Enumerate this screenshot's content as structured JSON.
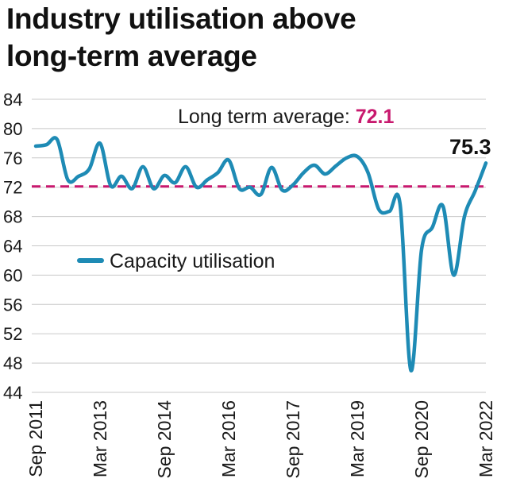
{
  "title_line1": "Industry utilisation above",
  "title_line2": "long-term average",
  "chart_data": {
    "type": "line",
    "title": "Industry utilisation above long-term average",
    "xlabel": "",
    "ylabel": "",
    "ylim": [
      44,
      84
    ],
    "yticks": [
      44,
      48,
      52,
      56,
      60,
      64,
      68,
      72,
      76,
      80,
      84
    ],
    "x_tick_labels": [
      "Sep 2011",
      "Mar 2013",
      "Sep 2014",
      "Mar 2016",
      "Sep 2017",
      "Mar 2019",
      "Sep 2020",
      "Mar 2022"
    ],
    "grid": "horizontal",
    "legend": "middle-left",
    "series": [
      {
        "name": "Capacity utilisation",
        "color": "#1e8bb5",
        "x": [
          "Sep 2011",
          "Dec 2011",
          "Mar 2012",
          "Jun 2012",
          "Sep 2012",
          "Dec 2012",
          "Mar 2013",
          "Jun 2013",
          "Sep 2013",
          "Dec 2013",
          "Mar 2014",
          "Jun 2014",
          "Sep 2014",
          "Dec 2014",
          "Mar 2015",
          "Jun 2015",
          "Sep 2015",
          "Dec 2015",
          "Mar 2016",
          "Jun 2016",
          "Sep 2016",
          "Dec 2016",
          "Mar 2017",
          "Jun 2017",
          "Sep 2017",
          "Dec 2017",
          "Mar 2018",
          "Jun 2018",
          "Sep 2018",
          "Dec 2018",
          "Mar 2019",
          "Jun 2019",
          "Sep 2019",
          "Dec 2019",
          "Mar 2020",
          "Jun 2020",
          "Sep 2020",
          "Dec 2020",
          "Mar 2021",
          "Jun 2021",
          "Sep 2021",
          "Dec 2021",
          "Mar 2022"
        ],
        "values": [
          77.6,
          77.8,
          78.5,
          73.0,
          73.5,
          74.5,
          78.0,
          72.2,
          73.5,
          71.8,
          74.8,
          71.8,
          73.6,
          72.6,
          74.8,
          72.0,
          73.0,
          74.0,
          75.7,
          71.8,
          72.0,
          71.0,
          74.7,
          71.6,
          72.3,
          74.0,
          75.0,
          73.8,
          74.9,
          76.0,
          76.2,
          74.0,
          69.0,
          68.7,
          69.6,
          47.0,
          63.5,
          66.5,
          69.4,
          60.0,
          68.0,
          71.5,
          75.3
        ]
      }
    ],
    "reference_line": {
      "label": "Long term average: ",
      "value": 72.1,
      "color": "#c8196e"
    },
    "end_label": "75.3"
  }
}
